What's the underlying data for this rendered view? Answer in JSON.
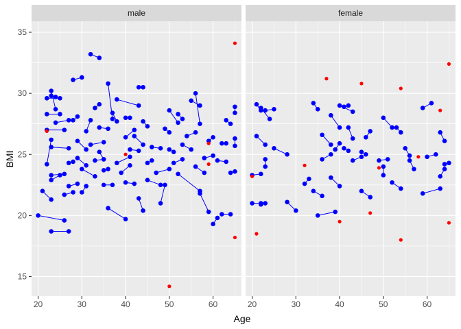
{
  "chart_data": {
    "type": "scatter",
    "xlabel": "Age",
    "ylabel": "BMI",
    "xlim": [
      18.5,
      66.5
    ],
    "ylim": [
      13.4,
      35.9
    ],
    "x_ticks": [
      20,
      30,
      40,
      50,
      60
    ],
    "y_ticks": [
      15,
      20,
      25,
      30,
      35
    ],
    "grid": true,
    "colors": {
      "paired": "#0000ff",
      "single": "#ff0000",
      "panel_bg": "#ebebeb",
      "strip_bg": "#d9d9d9",
      "grid": "#ffffff"
    },
    "panels": [
      {
        "label": "male",
        "singles": [
          [
            22,
            26.9
          ],
          [
            40,
            25.0
          ],
          [
            50,
            14.2
          ],
          [
            59,
            24.2
          ],
          [
            59,
            25.9
          ],
          [
            65,
            34.1
          ],
          [
            65,
            18.2
          ]
        ],
        "pairs": [
          [
            [
              20,
              20.0
            ],
            [
              26,
              19.6
            ]
          ],
          [
            [
              21,
              22.0
            ],
            [
              23,
              21.3
            ]
          ],
          [
            [
              22,
              28.3
            ],
            [
              25,
              28.3
            ]
          ],
          [
            [
              22,
              24.2
            ],
            [
              23,
              26.2
            ]
          ],
          [
            [
              22,
              29.6
            ],
            [
              25,
              29.6
            ]
          ],
          [
            [
              22,
              27.0
            ],
            [
              26,
              27.0
            ]
          ],
          [
            [
              23,
              29.8
            ],
            [
              24,
              29.7
            ]
          ],
          [
            [
              23,
              23.3
            ],
            [
              26,
              23.4
            ]
          ],
          [
            [
              23,
              22.9
            ],
            [
              25,
              23.3
            ]
          ],
          [
            [
              23,
              25.6
            ],
            [
              27,
              25.5
            ]
          ],
          [
            [
              23,
              30.2
            ],
            [
              24,
              28.7
            ]
          ],
          [
            [
              23,
              18.7
            ],
            [
              27,
              18.7
            ]
          ],
          [
            [
              24,
              27.6
            ],
            [
              27,
              27.8
            ]
          ],
          [
            [
              26,
              21.7
            ],
            [
              28,
              21.9
            ]
          ],
          [
            [
              27,
              24.3
            ],
            [
              28,
              24.4
            ]
          ],
          [
            [
              27,
              22.4
            ],
            [
              29,
              22.6
            ]
          ],
          [
            [
              28,
              31.1
            ],
            [
              30,
              31.3
            ]
          ],
          [
            [
              28,
              27.8
            ],
            [
              29,
              28.1
            ]
          ],
          [
            [
              29,
              26.1
            ],
            [
              31,
              25.4
            ]
          ],
          [
            [
              29,
              24.7
            ],
            [
              31,
              24.1
            ]
          ],
          [
            [
              30,
              21.9
            ],
            [
              31,
              22.4
            ]
          ],
          [
            [
              30,
              23.8
            ],
            [
              33,
              23.2
            ]
          ],
          [
            [
              31,
              26.9
            ],
            [
              32,
              27.8
            ]
          ],
          [
            [
              32,
              33.2
            ],
            [
              34,
              32.9
            ]
          ],
          [
            [
              32,
              25.8
            ],
            [
              35,
              26.0
            ]
          ],
          [
            [
              33,
              28.8
            ],
            [
              34,
              29.1
            ]
          ],
          [
            [
              33,
              24.5
            ],
            [
              35,
              24.6
            ]
          ],
          [
            [
              34,
              27.2
            ],
            [
              36,
              27.1
            ]
          ],
          [
            [
              34,
              25.2
            ],
            [
              35,
              24.6
            ]
          ],
          [
            [
              35,
              22.5
            ],
            [
              37,
              22.5
            ]
          ],
          [
            [
              35,
              23.7
            ],
            [
              36,
              23.8
            ]
          ],
          [
            [
              36,
              30.8
            ],
            [
              37,
              27.9
            ]
          ],
          [
            [
              36,
              20.6
            ],
            [
              40,
              19.7
            ]
          ],
          [
            [
              37,
              28.4
            ],
            [
              38,
              27.7
            ]
          ],
          [
            [
              38,
              24.3
            ],
            [
              41,
              24.8
            ]
          ],
          [
            [
              38,
              29.5
            ],
            [
              43,
              29.0
            ]
          ],
          [
            [
              39,
              23.5
            ],
            [
              41,
              24.1
            ]
          ],
          [
            [
              40,
              28.0
            ],
            [
              41,
              28.0
            ]
          ],
          [
            [
              40,
              22.7
            ],
            [
              42,
              22.6
            ]
          ],
          [
            [
              40,
              26.4
            ],
            [
              42,
              27.0
            ]
          ],
          [
            [
              41,
              25.4
            ],
            [
              43,
              25.3
            ]
          ],
          [
            [
              42,
              26.5
            ],
            [
              44,
              25.8
            ]
          ],
          [
            [
              43,
              30.5
            ],
            [
              44,
              30.5
            ]
          ],
          [
            [
              43,
              21.4
            ],
            [
              44,
              20.4
            ]
          ],
          [
            [
              44,
              27.7
            ],
            [
              45,
              27.3
            ]
          ],
          [
            [
              45,
              24.3
            ],
            [
              46,
              24.5
            ]
          ],
          [
            [
              45,
              22.9
            ],
            [
              48,
              22.5
            ]
          ],
          [
            [
              46,
              25.6
            ],
            [
              48,
              25.5
            ]
          ],
          [
            [
              47,
              23.5
            ],
            [
              50,
              23.8
            ]
          ],
          [
            [
              48,
              21.0
            ],
            [
              49,
              22.5
            ]
          ],
          [
            [
              49,
              27.1
            ],
            [
              50,
              26.8
            ]
          ],
          [
            [
              50,
              28.6
            ],
            [
              52,
              27.6
            ]
          ],
          [
            [
              50,
              25.4
            ],
            [
              51,
              25.2
            ]
          ],
          [
            [
              51,
              24.3
            ],
            [
              53,
              24.6
            ]
          ],
          [
            [
              52,
              28.3
            ],
            [
              53,
              27.9
            ]
          ],
          [
            [
              52,
              23.4
            ],
            [
              57,
              22.0
            ]
          ],
          [
            [
              53,
              25.8
            ],
            [
              55,
              25.4
            ]
          ],
          [
            [
              54,
              26.5
            ],
            [
              56,
              26.8
            ]
          ],
          [
            [
              55,
              29.4
            ],
            [
              57,
              29.0
            ]
          ],
          [
            [
              56,
              30.0
            ],
            [
              57,
              27.5
            ]
          ],
          [
            [
              56,
              24.0
            ],
            [
              58,
              23.5
            ]
          ],
          [
            [
              57,
              21.8
            ],
            [
              59,
              20.3
            ]
          ],
          [
            [
              58,
              24.7
            ],
            [
              60,
              24.9
            ]
          ],
          [
            [
              59,
              26.1
            ],
            [
              60,
              26.4
            ]
          ],
          [
            [
              60,
              19.3
            ],
            [
              61,
              19.8
            ]
          ],
          [
            [
              61,
              24.5
            ],
            [
              63,
              24.4
            ]
          ],
          [
            [
              62,
              25.9
            ],
            [
              63,
              25.9
            ]
          ],
          [
            [
              62,
              20.1
            ],
            [
              64,
              20.1
            ]
          ],
          [
            [
              63,
              27.8
            ],
            [
              64,
              27.5
            ]
          ],
          [
            [
              64,
              23.5
            ],
            [
              65,
              23.6
            ]
          ],
          [
            [
              65,
              28.9
            ],
            [
              65,
              28.4
            ]
          ],
          [
            [
              65,
              26.3
            ],
            [
              65,
              25.7
            ]
          ]
        ]
      },
      {
        "label": "female",
        "singles": [
          [
            20,
            23.2
          ],
          [
            21,
            18.5
          ],
          [
            32,
            24.1
          ],
          [
            37,
            31.2
          ],
          [
            40,
            19.5
          ],
          [
            45,
            30.8
          ],
          [
            47,
            20.2
          ],
          [
            49,
            23.9
          ],
          [
            54,
            30.4
          ],
          [
            54,
            18.0
          ],
          [
            58,
            24.8
          ],
          [
            63,
            28.6
          ],
          [
            65,
            32.4
          ],
          [
            65,
            19.4
          ]
        ],
        "pairs": [
          [
            [
              20,
              21.0
            ],
            [
              22,
              21.0
            ]
          ],
          [
            [
              20,
              23.3
            ],
            [
              22,
              23.4
            ]
          ],
          [
            [
              21,
              29.1
            ],
            [
              22,
              28.6
            ]
          ],
          [
            [
              21,
              26.5
            ],
            [
              23,
              25.8
            ]
          ],
          [
            [
              22,
              28.8
            ],
            [
              24,
              27.9
            ]
          ],
          [
            [
              22,
              20.9
            ],
            [
              23,
              21.0
            ]
          ],
          [
            [
              23,
              28.6
            ],
            [
              25,
              28.7
            ]
          ],
          [
            [
              23,
              24.0
            ],
            [
              23,
              24.6
            ]
          ],
          [
            [
              25,
              25.5
            ],
            [
              28,
              25.0
            ]
          ],
          [
            [
              28,
              21.1
            ],
            [
              30,
              20.4
            ]
          ],
          [
            [
              32,
              22.6
            ],
            [
              33,
              23.0
            ]
          ],
          [
            [
              34,
              29.2
            ],
            [
              35,
              28.7
            ]
          ],
          [
            [
              34,
              22.0
            ],
            [
              36,
              21.6
            ]
          ],
          [
            [
              35,
              20.0
            ],
            [
              39,
              20.3
            ]
          ],
          [
            [
              36,
              26.6
            ],
            [
              38,
              25.8
            ]
          ],
          [
            [
              36,
              24.6
            ],
            [
              38,
              25.0
            ]
          ],
          [
            [
              38,
              28.2
            ],
            [
              40,
              27.2
            ]
          ],
          [
            [
              38,
              23.1
            ],
            [
              40,
              22.4
            ]
          ],
          [
            [
              39,
              25.4
            ],
            [
              40,
              25.9
            ]
          ],
          [
            [
              40,
              29.0
            ],
            [
              43,
              28.5
            ]
          ],
          [
            [
              41,
              28.9
            ],
            [
              42,
              29.0
            ]
          ],
          [
            [
              41,
              25.5
            ],
            [
              42,
              25.3
            ]
          ],
          [
            [
              42,
              27.2
            ],
            [
              43,
              26.3
            ]
          ],
          [
            [
              43,
              24.5
            ],
            [
              45,
              24.8
            ]
          ],
          [
            [
              45,
              25.2
            ],
            [
              46,
              25.0
            ]
          ],
          [
            [
              45,
              22.0
            ],
            [
              47,
              21.5
            ]
          ],
          [
            [
              46,
              26.4
            ],
            [
              47,
              26.9
            ]
          ],
          [
            [
              49,
              24.5
            ],
            [
              51,
              24.6
            ]
          ],
          [
            [
              50,
              28.0
            ],
            [
              52,
              27.2
            ]
          ],
          [
            [
              50,
              23.3
            ],
            [
              50,
              24.0
            ]
          ],
          [
            [
              52,
              22.7
            ],
            [
              54,
              22.2
            ]
          ],
          [
            [
              53,
              27.2
            ],
            [
              54,
              26.8
            ]
          ],
          [
            [
              55,
              25.5
            ],
            [
              56,
              24.9
            ]
          ],
          [
            [
              56,
              24.5
            ],
            [
              57,
              23.8
            ]
          ],
          [
            [
              59,
              28.8
            ],
            [
              61,
              29.2
            ]
          ],
          [
            [
              59,
              21.8
            ],
            [
              63,
              22.2
            ]
          ],
          [
            [
              60,
              24.8
            ],
            [
              62,
              25.0
            ]
          ],
          [
            [
              63,
              26.8
            ],
            [
              64,
              26.1
            ]
          ],
          [
            [
              63,
              23.2
            ],
            [
              64,
              23.8
            ]
          ],
          [
            [
              64,
              24.2
            ],
            [
              65,
              24.3
            ]
          ]
        ]
      }
    ]
  }
}
